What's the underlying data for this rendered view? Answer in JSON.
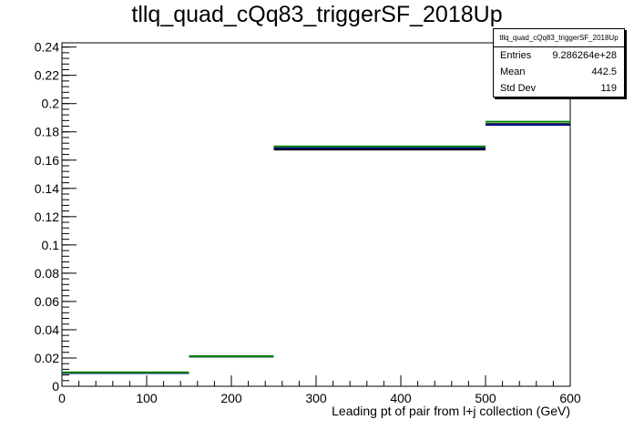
{
  "title": "tllq_quad_cQq83_triggerSF_2018Up",
  "stats": {
    "name": "tllq_quad_cQq83_triggerSF_2018Up",
    "rows": [
      {
        "label": "Entries",
        "value": "9.286264e+28"
      },
      {
        "label": "Mean",
        "value": "442.5"
      },
      {
        "label": "Std Dev",
        "value": "119"
      }
    ]
  },
  "chart_data": {
    "type": "bar",
    "title": "tllq_quad_cQq83_triggerSF_2018Up",
    "xlabel": "Leading pt of pair from l+j collection (GeV)",
    "ylabel": "",
    "xlim": [
      0,
      600
    ],
    "ylim": [
      0,
      0.243
    ],
    "grid": false,
    "bin_edges": [
      0,
      150,
      250,
      500,
      600
    ],
    "xticks": [
      0,
      100,
      200,
      300,
      400,
      500,
      600
    ],
    "yticks": [
      0,
      0.02,
      0.04,
      0.06,
      0.08,
      0.1,
      0.12,
      0.14,
      0.16,
      0.18,
      0.2,
      0.22,
      0.24
    ],
    "xtick_labels": [
      "0",
      "100",
      "200",
      "300",
      "400",
      "500",
      "600"
    ],
    "ytick_labels": [
      "0",
      "0.02",
      "0.04",
      "0.06",
      "0.08",
      "0.1",
      "0.12",
      "0.14",
      "0.16",
      "0.18",
      "0.2",
      "0.22",
      "0.24"
    ],
    "series": [
      {
        "color": "#000000",
        "values": [
          0.0095,
          0.0211,
          0.1675,
          0.1855
        ]
      },
      {
        "color": "#00008b",
        "values": [
          0.0094,
          0.0211,
          0.1685,
          0.185
        ]
      },
      {
        "color": "#008000",
        "values": [
          0.0098,
          0.0212,
          0.1697,
          0.1872
        ]
      }
    ]
  }
}
